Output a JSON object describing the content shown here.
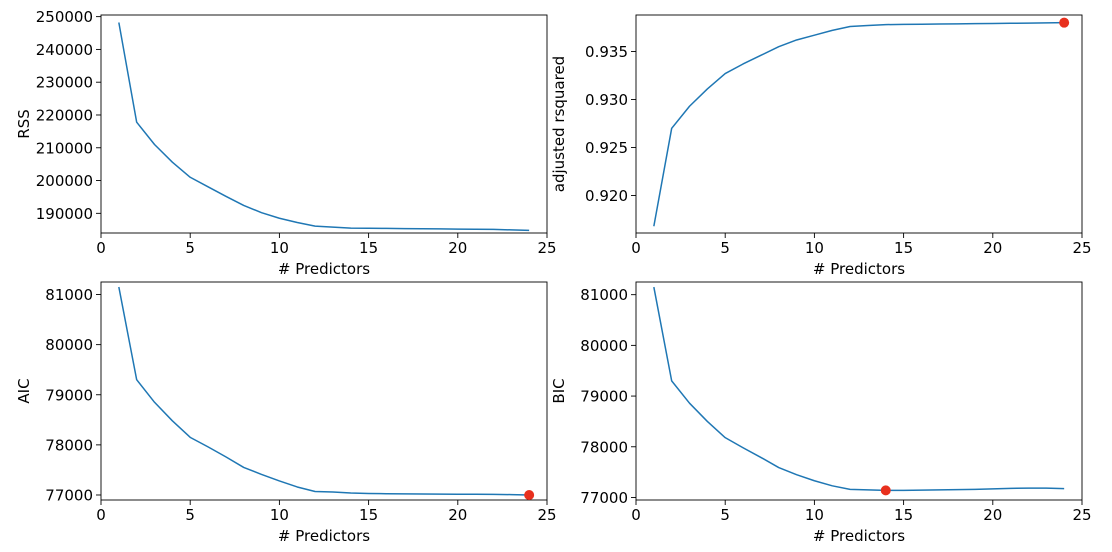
{
  "chart_data": [
    {
      "type": "line",
      "xlabel": "# Predictors",
      "ylabel": "RSS",
      "xlim": [
        0,
        25
      ],
      "ylim": [
        184000,
        250500
      ],
      "xticks": [
        0,
        5,
        10,
        15,
        20,
        25
      ],
      "yticks": [
        190000,
        200000,
        210000,
        220000,
        230000,
        240000,
        250000
      ],
      "grid": false,
      "line_color": "#1f77b4",
      "marker_color": "#e8301e",
      "series": [
        {
          "x": [
            1,
            2,
            3,
            4,
            5,
            6,
            7,
            8,
            9,
            10,
            11,
            12,
            13,
            14,
            15,
            16,
            17,
            18,
            19,
            20,
            21,
            22,
            23,
            24
          ],
          "y": [
            248200,
            217800,
            211000,
            205600,
            201000,
            198100,
            195200,
            192400,
            190200,
            188500,
            187200,
            186100,
            185800,
            185500,
            185450,
            185400,
            185350,
            185300,
            185250,
            185200,
            185150,
            185100,
            184950,
            184800
          ]
        }
      ],
      "highlight": null
    },
    {
      "type": "line",
      "xlabel": "# Predictors",
      "ylabel": "adjusted rsquared",
      "xlim": [
        0,
        25
      ],
      "ylim": [
        0.9161,
        0.9388
      ],
      "xticks": [
        0,
        5,
        10,
        15,
        20,
        25
      ],
      "yticks": [
        0.92,
        0.925,
        0.93,
        0.935
      ],
      "grid": false,
      "line_color": "#1f77b4",
      "marker_color": "#e8301e",
      "series": [
        {
          "x": [
            1,
            2,
            3,
            4,
            5,
            6,
            7,
            8,
            9,
            10,
            11,
            12,
            13,
            14,
            15,
            16,
            17,
            18,
            19,
            20,
            21,
            22,
            23,
            24
          ],
          "y": [
            0.9168,
            0.927,
            0.9293,
            0.9311,
            0.9327,
            0.9337,
            0.9346,
            0.9355,
            0.9362,
            0.9367,
            0.9372,
            0.9376,
            0.9377,
            0.9378,
            0.93782,
            0.93784,
            0.93786,
            0.93788,
            0.9379,
            0.93792,
            0.93794,
            0.93796,
            0.93798,
            0.938
          ]
        }
      ],
      "highlight": {
        "x": 24,
        "y": 0.938
      }
    },
    {
      "type": "line",
      "xlabel": "# Predictors",
      "ylabel": "AIC",
      "xlim": [
        0,
        25
      ],
      "ylim": [
        76900,
        81250
      ],
      "xticks": [
        0,
        5,
        10,
        15,
        20,
        25
      ],
      "yticks": [
        77000,
        78000,
        79000,
        80000,
        81000
      ],
      "grid": false,
      "line_color": "#1f77b4",
      "marker_color": "#e8301e",
      "series": [
        {
          "x": [
            1,
            2,
            3,
            4,
            5,
            6,
            7,
            8,
            9,
            10,
            11,
            12,
            13,
            14,
            15,
            16,
            17,
            18,
            19,
            20,
            21,
            22,
            23,
            24
          ],
          "y": [
            81150,
            79300,
            78850,
            78480,
            78150,
            77960,
            77760,
            77550,
            77410,
            77280,
            77160,
            77070,
            77060,
            77040,
            77030,
            77025,
            77022,
            77020,
            77018,
            77016,
            77014,
            77012,
            77008,
            77000
          ]
        }
      ],
      "highlight": {
        "x": 24,
        "y": 77000
      }
    },
    {
      "type": "line",
      "xlabel": "# Predictors",
      "ylabel": "BIC",
      "xlim": [
        0,
        25
      ],
      "ylim": [
        76950,
        81250
      ],
      "xticks": [
        0,
        5,
        10,
        15,
        20,
        25
      ],
      "yticks": [
        77000,
        78000,
        79000,
        80000,
        81000
      ],
      "grid": false,
      "line_color": "#1f77b4",
      "marker_color": "#e8301e",
      "series": [
        {
          "x": [
            1,
            2,
            3,
            4,
            5,
            6,
            7,
            8,
            9,
            10,
            11,
            12,
            13,
            14,
            15,
            16,
            17,
            18,
            19,
            20,
            21,
            22,
            23,
            24
          ],
          "y": [
            81150,
            79300,
            78860,
            78500,
            78180,
            77980,
            77790,
            77590,
            77450,
            77330,
            77230,
            77160,
            77150,
            77140,
            77140,
            77145,
            77150,
            77155,
            77160,
            77170,
            77180,
            77185,
            77185,
            77175
          ]
        }
      ],
      "highlight": {
        "x": 14,
        "y": 77140
      }
    }
  ]
}
